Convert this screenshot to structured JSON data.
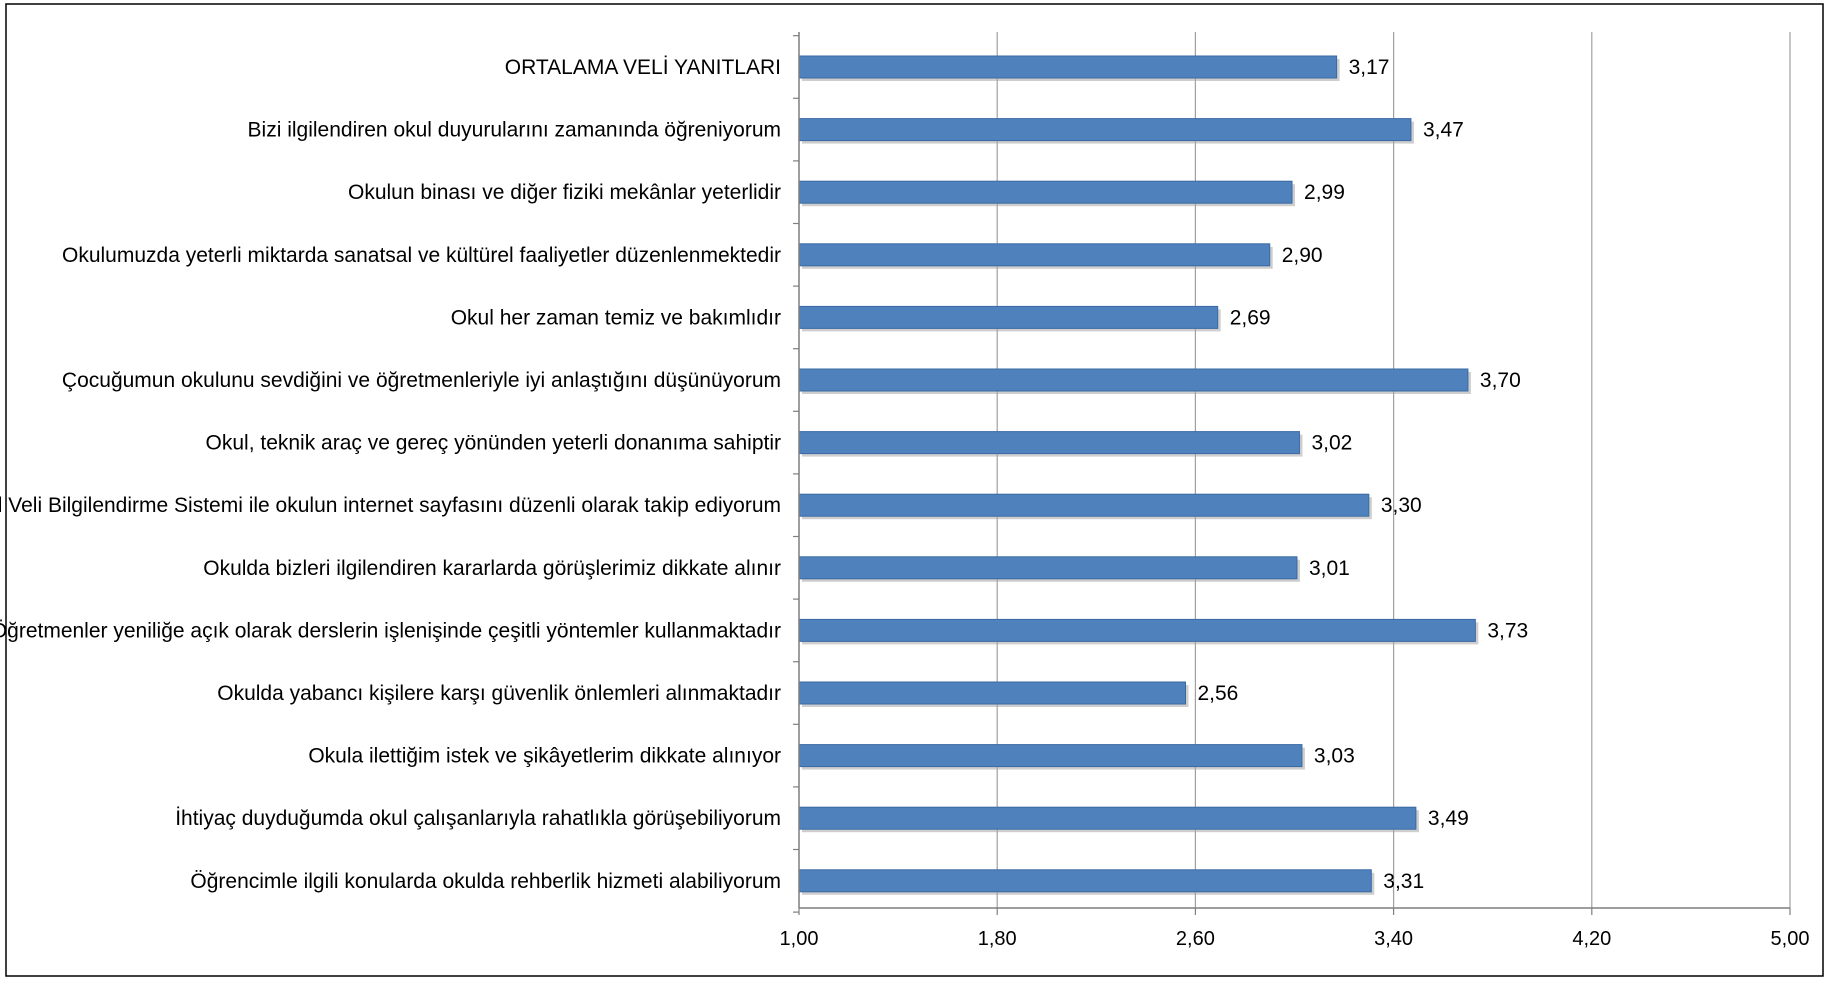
{
  "chart_data": {
    "type": "bar",
    "orientation": "horizontal",
    "categories": [
      "ORTALAMA VELİ YANITLARI",
      "Bizi ilgilendiren okul duyurularını zamanında öğreniyorum",
      "Okulun binası ve diğer fiziki mekânlar yeterlidir",
      "Okulumuzda yeterli miktarda sanatsal ve kültürel faaliyetler düzenlenmektedir",
      "Okul her zaman temiz ve bakımlıdır",
      "Çocuğumun okulunu sevdiğini ve öğretmenleriyle iyi anlaştığını düşünüyorum",
      "Okul, teknik araç ve gereç yönünden yeterli donanıma sahiptir",
      "E-Okul Veli Bilgilendirme Sistemi ile okulun internet sayfasını düzenli olarak takip ediyorum",
      "Okulda bizleri ilgilendiren kararlarda görüşlerimiz dikkate alınır",
      "Öğretmenler yeniliğe açık olarak derslerin işlenişinde çeşitli yöntemler kullanmaktadır",
      "Okulda yabancı kişilere karşı güvenlik önlemleri alınmaktadır",
      "Okula ilettiğim istek ve şikâyetlerim dikkate alınıyor",
      "İhtiyaç duyduğumda okul çalışanlarıyla rahatlıkla görüşebiliyorum",
      "Öğrencimle ilgili konularda okulda rehberlik hizmeti alabiliyorum"
    ],
    "values": [
      3.17,
      3.47,
      2.99,
      2.9,
      2.69,
      3.7,
      3.02,
      3.3,
      3.01,
      3.73,
      2.56,
      3.03,
      3.49,
      3.31
    ],
    "value_labels": [
      "3,17",
      "3,47",
      "2,99",
      "2,90",
      "2,69",
      "3,70",
      "3,02",
      "3,30",
      "3,01",
      "3,73",
      "2,56",
      "3,03",
      "3,49",
      "3,31"
    ],
    "xlim": [
      1.0,
      5.0
    ],
    "x_ticks": [
      1.0,
      1.8,
      2.6,
      3.4,
      4.2,
      5.0
    ],
    "x_tick_labels": [
      "1,00",
      "1,80",
      "2,60",
      "3,40",
      "4,20",
      "5,00"
    ],
    "title": "",
    "xlabel": "",
    "ylabel": "",
    "grid": "vertical",
    "legend": "none",
    "colors": {
      "bar_fill": "#4f81bd",
      "bar_stroke": "#3a6aa3",
      "bar_shadow": "#a6a6a6",
      "gridline": "#a0a0a0",
      "axis": "#7f7f7f",
      "frame": "#000000"
    }
  }
}
